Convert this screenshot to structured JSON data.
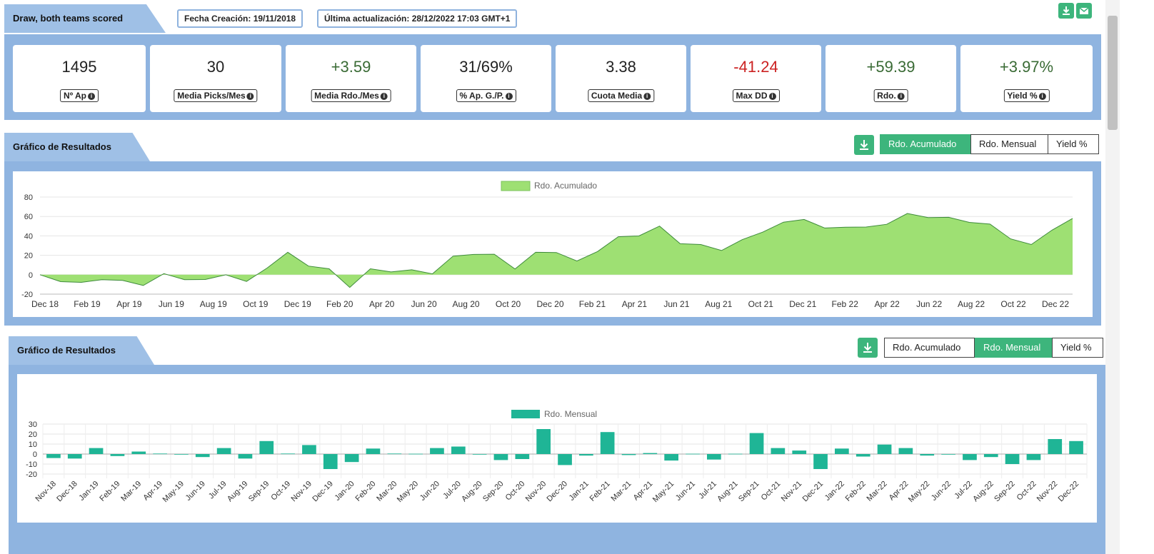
{
  "header": {
    "title": "Draw, both teams scored",
    "created_label": "Fecha Creación: 19/11/2018",
    "updated_label": "Última actualización: 28/12/2022 17:03 GMT+1",
    "download_icon": "download-icon",
    "email_icon": "envelope-icon"
  },
  "stats": [
    {
      "value": "1495",
      "label": "Nº Ap",
      "color": "#222222"
    },
    {
      "value": "30",
      "label": "Media Picks/Mes",
      "color": "#222222"
    },
    {
      "value": "+3.59",
      "label": "Media Rdo./Mes",
      "color": "#3a6b35"
    },
    {
      "value": "31/69%",
      "label": "% Ap. G./P.",
      "color": "#222222"
    },
    {
      "value": "3.38",
      "label": "Cuota Media",
      "color": "#222222"
    },
    {
      "value": "-41.24",
      "label": "Max DD",
      "color": "#cc2222"
    },
    {
      "value": "+59.39",
      "label": "Rdo.",
      "color": "#3a6b35"
    },
    {
      "value": "+3.97%",
      "label": "Yield %",
      "color": "#3a6b35"
    }
  ],
  "chart1": {
    "title": "Gráfico de Resultados",
    "tabs": [
      "Rdo. Acumulado",
      "Rdo. Mensual",
      "Yield %"
    ],
    "active_tab": 0
  },
  "chart2": {
    "title": "Gráfico de Resultados",
    "tabs": [
      "Rdo. Acumulado",
      "Rdo. Mensual",
      "Yield %"
    ],
    "active_tab": 1
  },
  "chart_data": [
    {
      "type": "area",
      "legend": "Rdo. Acumulado",
      "color": "#9ee073",
      "line_color": "#3d8a3a",
      "ylim": [
        -20,
        80
      ],
      "yticks": [
        80,
        60,
        40,
        20,
        0,
        -20
      ],
      "xticks": [
        "Dec 18",
        "Feb 19",
        "Apr 19",
        "Jun 19",
        "Aug 19",
        "Oct 19",
        "Dec 19",
        "Feb 20",
        "Apr 20",
        "Jun 20",
        "Aug 20",
        "Oct 20",
        "Dec 20",
        "Feb 21",
        "Apr 21",
        "Jun 21",
        "Aug 21",
        "Oct 21",
        "Dec 21",
        "Feb 22",
        "Apr 22",
        "Jun 22",
        "Aug 22",
        "Oct 22",
        "Dec 22"
      ],
      "points": [
        [
          "Nov 18",
          0
        ],
        [
          "Dec 18",
          -6
        ],
        [
          "Jan 19",
          -9
        ],
        [
          "Feb 19",
          -4
        ],
        [
          "Mar 19",
          -7
        ],
        [
          "Apr 19",
          -10
        ],
        [
          "May 19",
          0
        ],
        [
          "Jun 19",
          -4
        ],
        [
          "Jul 19",
          -6
        ],
        [
          "Aug 19",
          1
        ],
        [
          "Sep 19",
          -8
        ],
        [
          "Oct 19",
          8
        ],
        [
          "Nov 19",
          22
        ],
        [
          "Dec 19",
          10
        ],
        [
          "Jan 20",
          5
        ],
        [
          "Feb 20",
          -12
        ],
        [
          "Mar 20",
          5
        ],
        [
          "Apr 20",
          4
        ],
        [
          "May 20",
          4
        ],
        [
          "Jun 20",
          2
        ],
        [
          "Jul 20",
          18
        ],
        [
          "Aug 20",
          22
        ],
        [
          "Sep 20",
          20
        ],
        [
          "Oct 20",
          7
        ],
        [
          "Nov 20",
          22
        ],
        [
          "Dec 20",
          24
        ],
        [
          "Jan 21",
          13
        ],
        [
          "Feb 21",
          25
        ],
        [
          "Mar 21",
          38
        ],
        [
          "Apr 21",
          41
        ],
        [
          "May 21",
          49
        ],
        [
          "Jun 21",
          33
        ],
        [
          "Jul 21",
          30
        ],
        [
          "Aug 21",
          26
        ],
        [
          "Sep 21",
          35
        ],
        [
          "Oct 21",
          45
        ],
        [
          "Nov 21",
          53
        ],
        [
          "Dec 21",
          58
        ],
        [
          "Jan 22",
          47
        ],
        [
          "Feb 22",
          50
        ],
        [
          "Mar 22",
          48
        ],
        [
          "Apr 22",
          53
        ],
        [
          "May 22",
          62
        ],
        [
          "Jun 22",
          60
        ],
        [
          "Jul 22",
          58
        ],
        [
          "Aug 22",
          55
        ],
        [
          "Sep 22",
          51
        ],
        [
          "Oct 22",
          38
        ],
        [
          "Nov 22",
          30
        ],
        [
          "Dec 22",
          47
        ],
        [
          "Dec 22 end",
          58
        ]
      ]
    },
    {
      "type": "bar",
      "legend": "Rdo. Mensual",
      "color": "#1fb596",
      "ylim": [
        -20,
        30
      ],
      "yticks": [
        30,
        20,
        10,
        0,
        -10,
        -20
      ],
      "categories": [
        "Nov-18",
        "Dec-18",
        "Jan-19",
        "Feb-19",
        "Mar-19",
        "Apr-19",
        "May-19",
        "Jun-19",
        "Jul-19",
        "Aug-19",
        "Sep-19",
        "Oct-19",
        "Nov-19",
        "Dec-19",
        "Jan-20",
        "Feb-20",
        "Mar-20",
        "May-20",
        "Jun-20",
        "Jul-20",
        "Aug-20",
        "Sep-20",
        "Oct-20",
        "Nov-20",
        "Dec-20",
        "Jan-21",
        "Feb-21",
        "Mar-21",
        "Apr-21",
        "May-21",
        "Jun-21",
        "Jul-21",
        "Aug-21",
        "Sep-21",
        "Oct-21",
        "Nov-21",
        "Dec-21",
        "Jan-22",
        "Feb-22",
        "Mar-22",
        "Apr-22",
        "May-22",
        "Jun-22",
        "Jul-22",
        "Aug-22",
        "Sep-22",
        "Oct-22",
        "Nov-22",
        "Dec-22"
      ],
      "values": [
        -4,
        -4.5,
        6,
        -2,
        2.5,
        0.5,
        0,
        -3,
        6,
        -4.5,
        13,
        0.5,
        9,
        -15,
        -8,
        5.5,
        0.5,
        0.3,
        6,
        7.5,
        0,
        -6,
        -5,
        25,
        -11,
        -1.5,
        22,
        -1,
        1,
        -6.5,
        0.3,
        -5.5,
        0.3,
        21,
        6,
        3.5,
        -15,
        5.5,
        -2.5,
        9.5,
        6,
        -1.5,
        0,
        -6,
        -3,
        -10,
        -6,
        15,
        13
      ]
    }
  ]
}
